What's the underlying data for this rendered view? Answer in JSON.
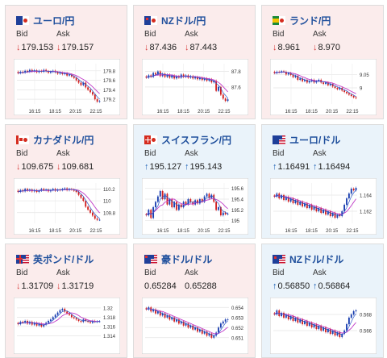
{
  "labels": {
    "bid": "Bid",
    "ask": "Ask"
  },
  "colors": {
    "down_bg": "#fbecec",
    "up_bg": "#eaf3fa",
    "title": "#1f4f9c",
    "down_arrow": "#d63a3a",
    "up_arrow": "#1a5fb4",
    "price": "#9b2fb0"
  },
  "cards": [
    {
      "pair": "ユーロ/円",
      "flag": "eu-jp",
      "trend": "down",
      "bid": "179.153",
      "ask": "179.157",
      "chart_data": {
        "type": "candlestick",
        "yticks": [
          "179.8",
          "179.6",
          "179.4",
          "179.2"
        ],
        "ylim": [
          179.1,
          179.95
        ],
        "xticks": [
          "16:15",
          "18:15",
          "20:15",
          "22:15"
        ],
        "close": [
          179.75,
          179.78,
          179.76,
          179.8,
          179.78,
          179.82,
          179.79,
          179.81,
          179.77,
          179.8,
          179.78,
          179.82,
          179.79,
          179.76,
          179.78,
          179.8,
          179.77,
          179.74,
          179.76,
          179.73,
          179.75,
          179.7,
          179.72,
          179.68,
          179.65,
          179.6,
          179.55,
          179.5,
          179.55,
          179.45,
          179.4,
          179.35,
          179.3,
          179.2,
          179.15,
          179.16
        ]
      }
    },
    {
      "pair": "NZドル/円",
      "flag": "nz-jp",
      "trend": "down",
      "bid": "87.436",
      "ask": "87.443",
      "chart_data": {
        "type": "candlestick",
        "yticks": [
          "87.8",
          "87.6"
        ],
        "ylim": [
          87.38,
          87.9
        ],
        "xticks": [
          "16:15",
          "18:15",
          "20:15",
          "22:15"
        ],
        "close": [
          87.72,
          87.75,
          87.73,
          87.78,
          87.76,
          87.8,
          87.74,
          87.77,
          87.73,
          87.76,
          87.72,
          87.75,
          87.71,
          87.74,
          87.72,
          87.76,
          87.73,
          87.75,
          87.72,
          87.74,
          87.71,
          87.73,
          87.7,
          87.72,
          87.69,
          87.71,
          87.68,
          87.7,
          87.66,
          87.68,
          87.55,
          87.6,
          87.5,
          87.45,
          87.42,
          87.44
        ]
      }
    },
    {
      "pair": "ランド/円",
      "flag": "za-jp",
      "trend": "down",
      "bid": "8.961",
      "ask": "8.970",
      "chart_data": {
        "type": "candlestick",
        "yticks": [
          "9.05",
          "9"
        ],
        "ylim": [
          8.94,
          9.09
        ],
        "xticks": [
          "16:15",
          "18:15",
          "20:15",
          "22:15"
        ],
        "close": [
          9.055,
          9.06,
          9.058,
          9.062,
          9.06,
          9.05,
          9.055,
          9.048,
          9.04,
          9.045,
          9.03,
          9.035,
          9.025,
          9.03,
          9.02,
          9.025,
          9.03,
          9.02,
          9.025,
          9.03,
          9.02,
          9.015,
          9.02,
          9.01,
          9.015,
          9.005,
          9.0,
          8.995,
          9.0,
          8.99,
          8.985,
          8.98,
          8.975,
          8.97,
          8.965,
          8.962
        ]
      }
    },
    {
      "pair": "カナダドル/円",
      "flag": "ca-jp",
      "trend": "down",
      "bid": "109.675",
      "ask": "109.681",
      "chart_data": {
        "type": "candlestick",
        "yticks": [
          "110.2",
          "110",
          "109.8"
        ],
        "ylim": [
          109.62,
          110.3
        ],
        "xticks": [
          "16:15",
          "18:15",
          "20:15",
          "22:15"
        ],
        "close": [
          110.15,
          110.18,
          110.16,
          110.2,
          110.17,
          110.19,
          110.16,
          110.18,
          110.15,
          110.17,
          110.2,
          110.18,
          110.19,
          110.16,
          110.18,
          110.2,
          110.17,
          110.19,
          110.18,
          110.2,
          110.21,
          110.18,
          110.2,
          110.19,
          110.17,
          110.15,
          110.1,
          110.05,
          110.0,
          109.9,
          109.85,
          109.8,
          109.75,
          109.7,
          109.68,
          109.68
        ]
      }
    },
    {
      "pair": "スイスフラン/円",
      "flag": "ch-jp",
      "trend": "up",
      "bid": "195.127",
      "ask": "195.143",
      "chart_data": {
        "type": "candlestick",
        "yticks": [
          "195.6",
          "195.4",
          "195.2",
          "195"
        ],
        "ylim": [
          194.95,
          195.7
        ],
        "xticks": [
          "16:15",
          "18:15",
          "20:15",
          "22:15"
        ],
        "close": [
          195.1,
          195.2,
          195.05,
          195.25,
          195.35,
          195.45,
          195.55,
          195.4,
          195.5,
          195.3,
          195.4,
          195.25,
          195.35,
          195.2,
          195.3,
          195.25,
          195.35,
          195.3,
          195.4,
          195.35,
          195.3,
          195.38,
          195.32,
          195.4,
          195.35,
          195.45,
          195.5,
          195.42,
          195.48,
          195.35,
          195.2,
          195.25,
          195.1,
          195.15,
          195.12,
          195.13
        ]
      }
    },
    {
      "pair": "ユーロ/ドル",
      "flag": "eu-us",
      "trend": "up",
      "bid": "1.16491",
      "ask": "1.16494",
      "chart_data": {
        "type": "candlestick",
        "yticks": [
          "1.164",
          "1.162"
        ],
        "ylim": [
          1.1605,
          1.1655
        ],
        "xticks": [
          "16:15",
          "18:15",
          "20:15",
          "22:15"
        ],
        "close": [
          1.1638,
          1.1642,
          1.1636,
          1.164,
          1.1634,
          1.1638,
          1.1632,
          1.1636,
          1.163,
          1.1634,
          1.1628,
          1.1632,
          1.1626,
          1.163,
          1.1624,
          1.1628,
          1.1622,
          1.1626,
          1.162,
          1.1624,
          1.1618,
          1.1622,
          1.1616,
          1.162,
          1.1614,
          1.1618,
          1.1612,
          1.1616,
          1.1614,
          1.162,
          1.1628,
          1.1636,
          1.1642,
          1.1648,
          1.1646,
          1.1649
        ]
      }
    },
    {
      "pair": "英ポンド/ドル",
      "flag": "gb-us",
      "trend": "down",
      "bid": "1.31709",
      "ask": "1.31719",
      "chart_data": {
        "type": "candlestick",
        "yticks": [
          "1.32",
          "1.318",
          "1.316",
          "1.314"
        ],
        "ylim": [
          1.3125,
          1.3212
        ],
        "xticks": [],
        "close": [
          1.3165,
          1.317,
          1.3168,
          1.3172,
          1.3166,
          1.317,
          1.3164,
          1.3168,
          1.3162,
          1.3166,
          1.316,
          1.3164,
          1.3168,
          1.3172,
          1.3175,
          1.318,
          1.3185,
          1.319,
          1.3195,
          1.3198,
          1.3192,
          1.3188,
          1.3185,
          1.318,
          1.3178,
          1.3175,
          1.3172,
          1.317,
          1.3175,
          1.3172,
          1.317,
          1.3168,
          1.3172,
          1.317,
          1.3171,
          1.3171
        ]
      }
    },
    {
      "pair": "豪ドル/ドル",
      "flag": "au-us",
      "trend": "flat",
      "bid": "0.65284",
      "ask": "0.65288",
      "chart_data": {
        "type": "candlestick",
        "yticks": [
          "0.654",
          "0.653",
          "0.652",
          "0.651"
        ],
        "ylim": [
          0.6505,
          0.6545
        ],
        "xticks": [],
        "close": [
          0.6538,
          0.654,
          0.6536,
          0.6538,
          0.6534,
          0.6536,
          0.6532,
          0.6534,
          0.653,
          0.6532,
          0.6528,
          0.653,
          0.6526,
          0.6528,
          0.6524,
          0.6526,
          0.6522,
          0.6524,
          0.652,
          0.6522,
          0.6518,
          0.652,
          0.6516,
          0.6518,
          0.6514,
          0.6516,
          0.6512,
          0.6514,
          0.651,
          0.6512,
          0.6515,
          0.652,
          0.6524,
          0.6526,
          0.6528,
          0.6528
        ]
      }
    },
    {
      "pair": "NZドル/ドル",
      "flag": "nz-us",
      "trend": "up",
      "bid": "0.56850",
      "ask": "0.56864",
      "chart_data": {
        "type": "candlestick",
        "yticks": [
          "0.568",
          "0.566"
        ],
        "ylim": [
          0.5645,
          0.5695
        ],
        "xticks": [],
        "close": [
          0.568,
          0.5685,
          0.5678,
          0.5682,
          0.5676,
          0.568,
          0.5674,
          0.5678,
          0.5672,
          0.5676,
          0.567,
          0.5674,
          0.5668,
          0.5672,
          0.5666,
          0.567,
          0.5664,
          0.5668,
          0.5662,
          0.5666,
          0.566,
          0.5664,
          0.5658,
          0.5662,
          0.5656,
          0.566,
          0.5654,
          0.5658,
          0.5652,
          0.5656,
          0.566,
          0.5668,
          0.5676,
          0.568,
          0.5684,
          0.5685
        ]
      }
    }
  ]
}
